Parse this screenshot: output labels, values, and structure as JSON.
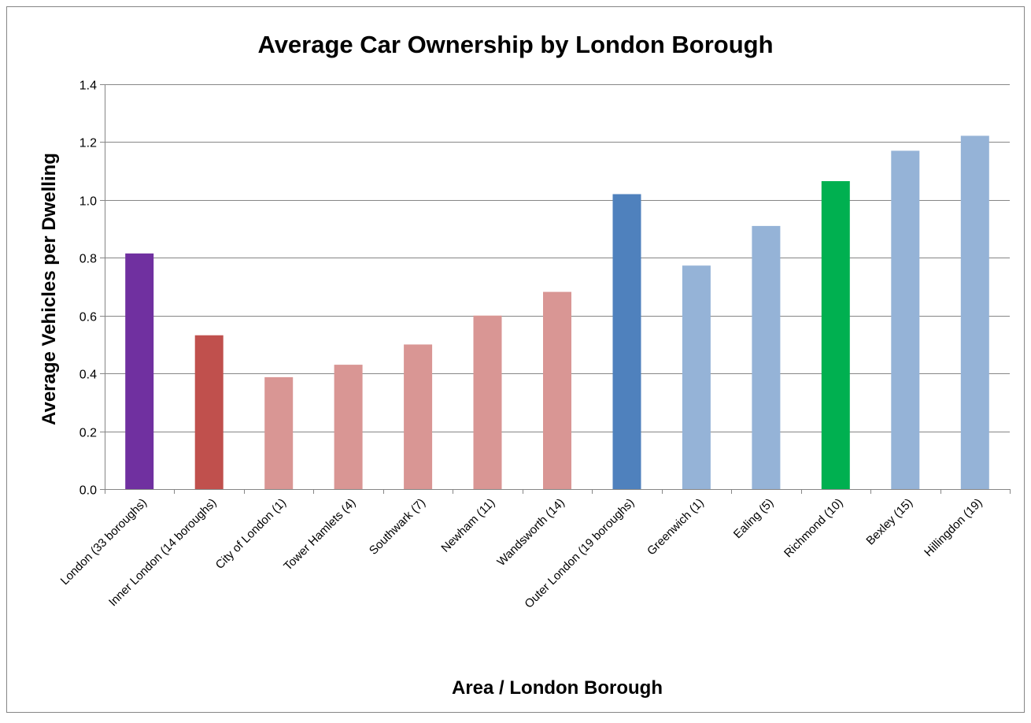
{
  "chart_data": {
    "type": "bar",
    "title": "Average Car Ownership by London Borough",
    "xlabel": "Area / London Borough",
    "ylabel": "Average Vehicles per Dwelling",
    "ylim": [
      0,
      1.4
    ],
    "yticks": [
      "0.0",
      "0.2",
      "0.4",
      "0.6",
      "0.8",
      "1.0",
      "1.2",
      "1.4"
    ],
    "grid": true,
    "legend": "none",
    "categories": [
      "London (33 boroughs)",
      "Inner London (14 boroughs)",
      "City of London (1)",
      "Tower Hamlets (4)",
      "Southwark (7)",
      "Newham (11)",
      "Wandsworth (14)",
      "Outer London (19 boroughs)",
      "Greenwich (1)",
      "Ealing (5)",
      "Richmond (10)",
      "Bexley (15)",
      "Hillingdon (19)"
    ],
    "values": [
      0.815,
      0.532,
      0.387,
      0.43,
      0.5,
      0.6,
      0.682,
      1.02,
      0.773,
      0.91,
      1.065,
      1.17,
      1.222
    ],
    "colors": [
      "#7030A0",
      "#C0504D",
      "#D99694",
      "#D99694",
      "#D99694",
      "#D99694",
      "#D99694",
      "#4F81BD",
      "#95B3D7",
      "#95B3D7",
      "#00B050",
      "#95B3D7",
      "#95B3D7"
    ]
  }
}
